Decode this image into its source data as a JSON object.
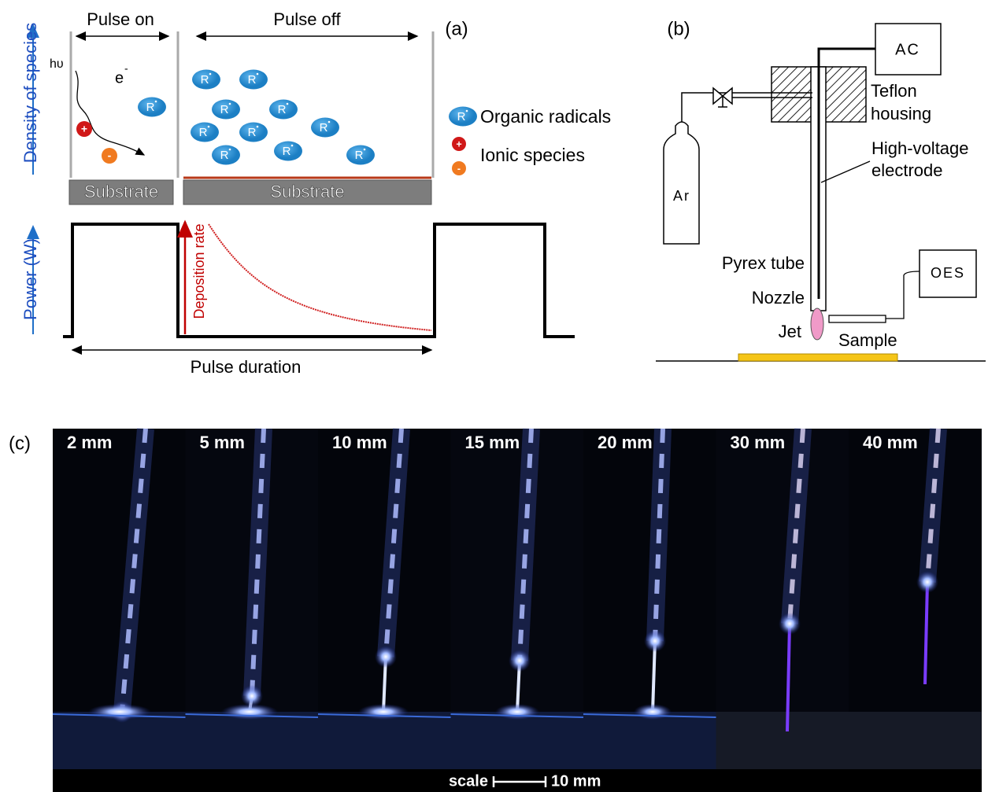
{
  "panel_a": {
    "label": "(a)",
    "pulse_on": "Pulse on",
    "pulse_off": "Pulse off",
    "density_axis": "Density of species",
    "photon": "hυ",
    "electron": "e",
    "electron_charge": "-",
    "radical": "R",
    "positive": "+",
    "negative": "-",
    "legend": [
      "Organic radicals",
      "Ionic species"
    ],
    "substrates": [
      "Substrate",
      "Substrate"
    ],
    "power_axis": "Power (W)",
    "deposition_rate": "Deposition rate",
    "pulse_duration": "Pulse duration"
  },
  "panel_b": {
    "label": "(b)",
    "ac": "AC",
    "teflon": [
      "Teflon",
      "housing"
    ],
    "electrode": [
      "High-voltage",
      "electrode"
    ],
    "gas": "Ar",
    "pyrex": "Pyrex tube",
    "nozzle": "Nozzle",
    "jet": "Jet",
    "sample": "Sample",
    "oes": "OES"
  },
  "panel_c": {
    "label": "(c)",
    "frames": [
      "2 mm",
      "5 mm",
      "10 mm",
      "15 mm",
      "20 mm",
      "30 mm",
      "40 mm"
    ],
    "scale_label": "scale",
    "scale_value": "10 mm"
  }
}
